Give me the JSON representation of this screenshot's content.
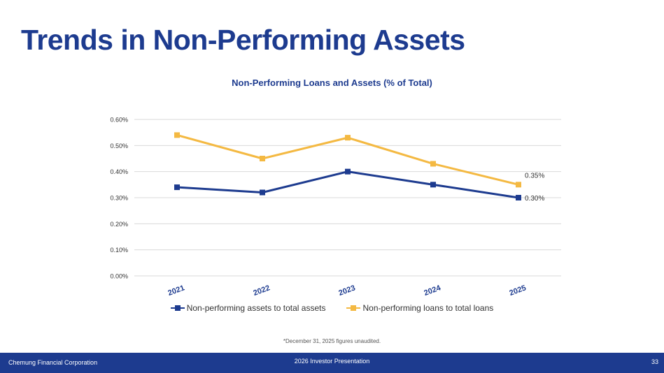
{
  "slide": {
    "title": "Trends in Non-Performing Assets",
    "footnote": "*December 31, 2025 figures unaudited.",
    "footer": {
      "company": "Chemung Financial Corporation",
      "presentation": "2026 Investor Presentation",
      "page": "33"
    }
  },
  "colors": {
    "navy": "#1d3b8f",
    "gold": "#f4b942",
    "grid": "#d9d9d9"
  },
  "chart_data": {
    "type": "line",
    "title": "Non-Performing Loans and Assets (% of Total)",
    "categories": [
      "2021",
      "2022",
      "2023",
      "2024",
      "2025"
    ],
    "ylim": [
      0,
      0.6
    ],
    "y_ticks": [
      "0.00%",
      "0.10%",
      "0.20%",
      "0.30%",
      "0.40%",
      "0.50%",
      "0.60%"
    ],
    "grid": true,
    "legend_position": "bottom",
    "series": [
      {
        "name": "Non-performing assets to total assets",
        "color": "#1d3b8f",
        "values": [
          0.34,
          0.32,
          0.4,
          0.35,
          0.3
        ],
        "end_label": "0.30%"
      },
      {
        "name": "Non-performing loans to total loans",
        "color": "#f4b942",
        "values": [
          0.54,
          0.45,
          0.53,
          0.43,
          0.35
        ],
        "end_label": "0.35%"
      }
    ]
  }
}
